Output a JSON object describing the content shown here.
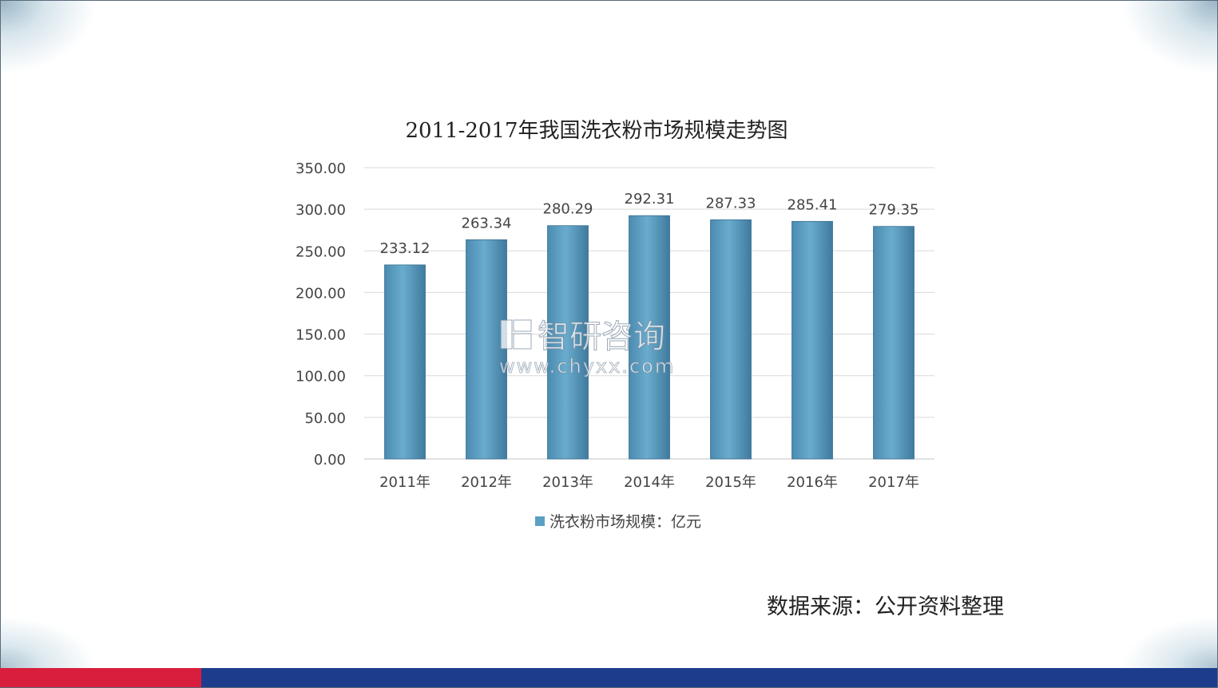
{
  "slide": {
    "source_note": "数据来源：公开资料整理",
    "colors": {
      "footer_red": "#d81e3c",
      "footer_blue": "#1d3d8c",
      "bar": "#5b9fc2"
    }
  },
  "watermark": {
    "brand": "智研咨询",
    "url": "www.chyxx.com"
  },
  "chart_data": {
    "type": "bar",
    "title": "2011-2017年我国洗衣粉市场规模走势图",
    "categories": [
      "2011年",
      "2012年",
      "2013年",
      "2014年",
      "2015年",
      "2016年",
      "2017年"
    ],
    "series": [
      {
        "name": "洗衣粉市场规模：亿元",
        "values": [
          233.12,
          263.34,
          280.29,
          292.31,
          287.33,
          285.41,
          279.35
        ]
      }
    ],
    "data_labels": [
      "233.12",
      "263.34",
      "280.29",
      "292.31",
      "287.33",
      "285.41",
      "279.35"
    ],
    "y_ticks": [
      "0.00",
      "50.00",
      "100.00",
      "150.00",
      "200.00",
      "250.00",
      "300.00",
      "350.00"
    ],
    "ylim": [
      0,
      350
    ],
    "xlabel": "",
    "ylabel": "",
    "grid": true,
    "legend_position": "bottom"
  }
}
